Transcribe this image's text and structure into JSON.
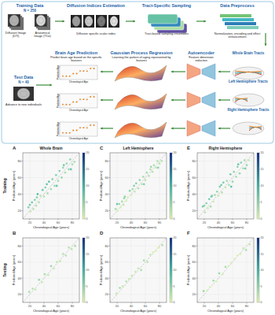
{
  "diagram": {
    "steps": [
      {
        "title": "Training Data",
        "subtitle": "N = 250",
        "notes": [
          "Diffusion Image (DTI)",
          "Anatomical Image (T1w)"
        ]
      },
      {
        "title": "Diffusion Indices Estimation",
        "notes": [
          "Diffusion specific scalar index"
        ]
      },
      {
        "title": "Tract-Specific Sampling",
        "notes": [
          "Tract-based sampling ensembles"
        ]
      },
      {
        "title": "Data Preprocess",
        "notes": [
          "Normalization, encoding and effect enhancement"
        ]
      }
    ],
    "tracts": [
      "Whole Brain Tracts",
      "Left Hemisphere Tracts",
      "Right Hemisphere Tracts"
    ],
    "autoencoder": {
      "title": "Autoencoder",
      "note": "Feature dimension reduction"
    },
    "gpr": {
      "title": "Gaussian Process Regression",
      "note": "Learning the pattern of aging represented by features"
    },
    "prediction": {
      "title": "Brain Age Prediction",
      "note": "Predict brain age based on the specific features",
      "x_label": "Chronological Age",
      "y_label": "Predicted Age"
    },
    "test": {
      "title": "Test Data",
      "subtitle": "N = 40",
      "note": "Advance to new individuals"
    }
  },
  "chart_data": [
    {
      "type": "scatter",
      "panel": "A",
      "title": "Whole Brain",
      "row": "Training",
      "x_label": "Chronological Age (years)",
      "y_label": "Predicted Age (years)",
      "x": [
        18,
        21,
        23,
        25,
        27,
        29,
        31,
        33,
        35,
        38,
        40,
        42,
        45,
        47,
        50,
        52,
        55,
        57,
        60,
        62,
        65,
        67,
        70,
        72,
        75,
        77,
        80,
        83,
        20,
        30,
        44,
        58,
        68,
        78
      ],
      "values": [
        24,
        19,
        30,
        22,
        33,
        26,
        40,
        30,
        38,
        45,
        37,
        48,
        41,
        55,
        46,
        58,
        50,
        63,
        56,
        68,
        60,
        72,
        66,
        77,
        70,
        82,
        76,
        79,
        27,
        36,
        52,
        50,
        75,
        70
      ],
      "xlim": [
        10,
        90
      ],
      "xticks": [
        20,
        40,
        60,
        80
      ],
      "ylim": [
        10,
        90
      ],
      "yticks": [
        20,
        40,
        60,
        80
      ],
      "grid": true,
      "colorbar": {
        "lim": [
          0,
          20
        ],
        "ticks": [
          0,
          5,
          10,
          15,
          20
        ]
      }
    },
    {
      "type": "scatter",
      "panel": "B",
      "row": "Testing",
      "x_label": "Chronological Age (years)",
      "y_label": "Predicted Age (years)",
      "x": [
        19,
        24,
        28,
        33,
        37,
        41,
        46,
        50,
        54,
        58,
        63,
        67,
        71,
        75,
        79,
        84
      ],
      "values": [
        23,
        27,
        26,
        38,
        35,
        45,
        44,
        55,
        52,
        60,
        61,
        70,
        68,
        78,
        76,
        80
      ],
      "xlim": [
        10,
        90
      ],
      "xticks": [
        20,
        40,
        60,
        80
      ],
      "ylim": [
        10,
        90
      ],
      "yticks": [
        20,
        40,
        60,
        80
      ],
      "grid": true,
      "colorbar": {
        "lim": [
          0,
          20
        ],
        "ticks": [
          0,
          5,
          10,
          15,
          20
        ]
      }
    },
    {
      "type": "scatter",
      "panel": "C",
      "title": "Left Hemisphere",
      "row": "Training",
      "x_label": "Chronological Age (years)",
      "y_label": "Predicted Age (years)",
      "x": [
        18,
        21,
        23,
        25,
        27,
        29,
        31,
        33,
        35,
        38,
        40,
        42,
        45,
        47,
        50,
        52,
        55,
        57,
        60,
        62,
        65,
        67,
        70,
        72,
        75,
        77,
        80,
        83,
        20,
        30,
        44,
        58,
        68,
        78
      ],
      "values": [
        22,
        20,
        28,
        24,
        31,
        27,
        37,
        32,
        36,
        44,
        39,
        46,
        43,
        53,
        47,
        57,
        52,
        61,
        57,
        66,
        62,
        70,
        67,
        75,
        72,
        80,
        77,
        80,
        28,
        35,
        50,
        52,
        73,
        72
      ],
      "xlim": [
        10,
        90
      ],
      "xticks": [
        20,
        40,
        60,
        80
      ],
      "ylim": [
        10,
        90
      ],
      "yticks": [
        20,
        40,
        60,
        80
      ],
      "grid": true,
      "colorbar": {
        "lim": [
          0,
          20
        ],
        "ticks": [
          0,
          5,
          10,
          15,
          20
        ]
      }
    },
    {
      "type": "scatter",
      "panel": "D",
      "row": "Testing",
      "x_label": "Chronological Age (years)",
      "y_label": "Predicted Age (years)",
      "x": [
        19,
        24,
        28,
        33,
        37,
        41,
        46,
        50,
        54,
        58,
        63,
        67,
        71,
        75,
        79,
        84
      ],
      "values": [
        21,
        28,
        30,
        36,
        39,
        43,
        48,
        52,
        50,
        62,
        60,
        69,
        72,
        74,
        78,
        81
      ],
      "xlim": [
        10,
        90
      ],
      "xticks": [
        20,
        40,
        60,
        80
      ],
      "ylim": [
        10,
        90
      ],
      "yticks": [
        20,
        40,
        60,
        80
      ],
      "grid": true,
      "colorbar": {
        "lim": [
          0,
          20
        ],
        "ticks": [
          0,
          5,
          10,
          15,
          20
        ]
      }
    },
    {
      "type": "scatter",
      "panel": "E",
      "title": "Right Hemisphere",
      "row": "Training",
      "x_label": "Chronological Age (years)",
      "y_label": "Predicted Age (years)",
      "x": [
        18,
        21,
        23,
        25,
        27,
        29,
        31,
        33,
        35,
        38,
        40,
        42,
        45,
        47,
        50,
        52,
        55,
        57,
        60,
        62,
        65,
        67,
        70,
        72,
        75,
        77,
        80,
        83,
        20,
        30,
        44,
        58,
        68,
        78
      ],
      "values": [
        25,
        18,
        29,
        23,
        34,
        25,
        38,
        31,
        39,
        43,
        38,
        49,
        42,
        54,
        48,
        56,
        51,
        64,
        55,
        67,
        61,
        73,
        65,
        78,
        71,
        81,
        75,
        81,
        26,
        37,
        51,
        49,
        76,
        71
      ],
      "xlim": [
        10,
        90
      ],
      "xticks": [
        20,
        40,
        60,
        80
      ],
      "ylim": [
        10,
        90
      ],
      "yticks": [
        20,
        40,
        60,
        80
      ],
      "grid": true,
      "colorbar": {
        "lim": [
          0,
          20
        ],
        "ticks": [
          0,
          5,
          10,
          15,
          20
        ]
      }
    },
    {
      "type": "scatter",
      "panel": "F",
      "row": "Testing",
      "x_label": "Chronological Age (years)",
      "y_label": "Predicted Age (years)",
      "x": [
        19,
        24,
        28,
        33,
        37,
        41,
        46,
        50,
        54,
        58,
        63,
        67,
        71,
        75,
        79,
        84
      ],
      "values": [
        24,
        25,
        29,
        37,
        36,
        46,
        45,
        54,
        55,
        59,
        64,
        68,
        70,
        77,
        75,
        82
      ],
      "xlim": [
        10,
        90
      ],
      "xticks": [
        20,
        40,
        60,
        80
      ],
      "ylim": [
        10,
        90
      ],
      "yticks": [
        20,
        40,
        60,
        80
      ],
      "grid": true,
      "colorbar": {
        "lim": [
          0,
          20
        ],
        "ticks": [
          0,
          5,
          10,
          15,
          20
        ]
      }
    }
  ]
}
